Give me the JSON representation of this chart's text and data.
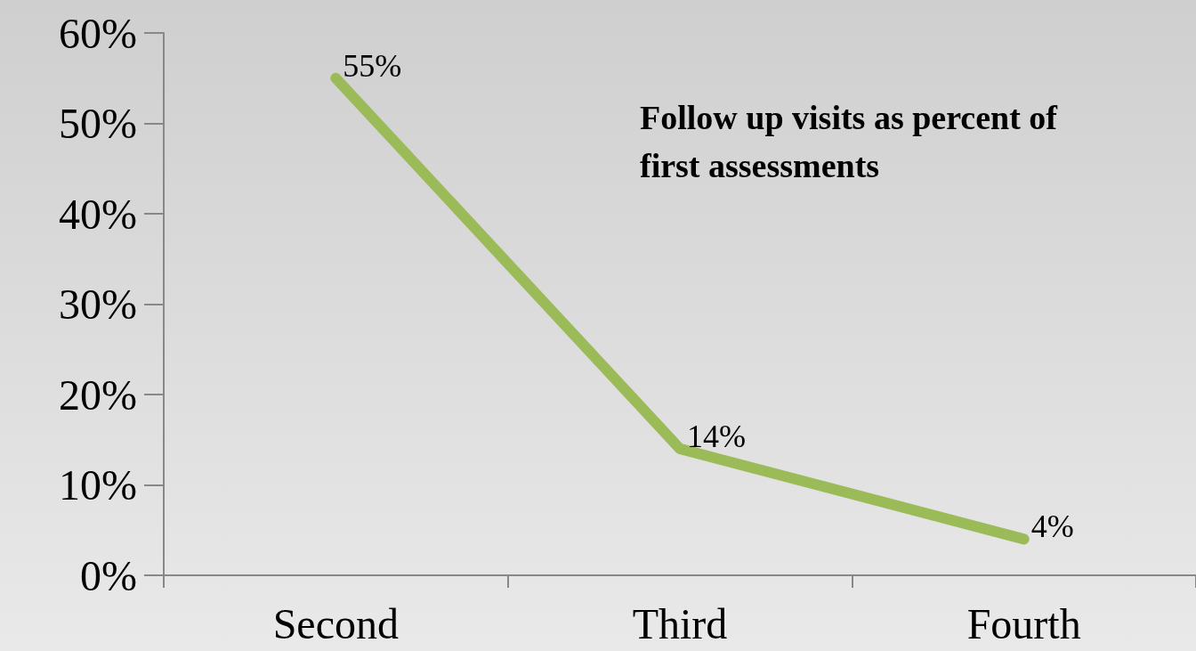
{
  "chart_data": {
    "type": "line",
    "title": "Follow up visits as percent of first assessments",
    "categories": [
      "Second",
      "Third",
      "Fourth"
    ],
    "series": [
      {
        "color": "#9bbb59",
        "values": [
          55,
          14,
          4
        ],
        "value_labels": [
          "55%",
          "14%",
          "4%"
        ]
      }
    ],
    "ylim": [
      0,
      60
    ],
    "yticks": [
      {
        "value": 0,
        "label": "0%"
      },
      {
        "value": 10,
        "label": "10%"
      },
      {
        "value": 20,
        "label": "20%"
      },
      {
        "value": 30,
        "label": "30%"
      },
      {
        "value": 40,
        "label": "40%"
      },
      {
        "value": 50,
        "label": "50%"
      },
      {
        "value": 60,
        "label": "60%"
      }
    ],
    "grid": false,
    "marker": "none",
    "line_style": "solid"
  }
}
